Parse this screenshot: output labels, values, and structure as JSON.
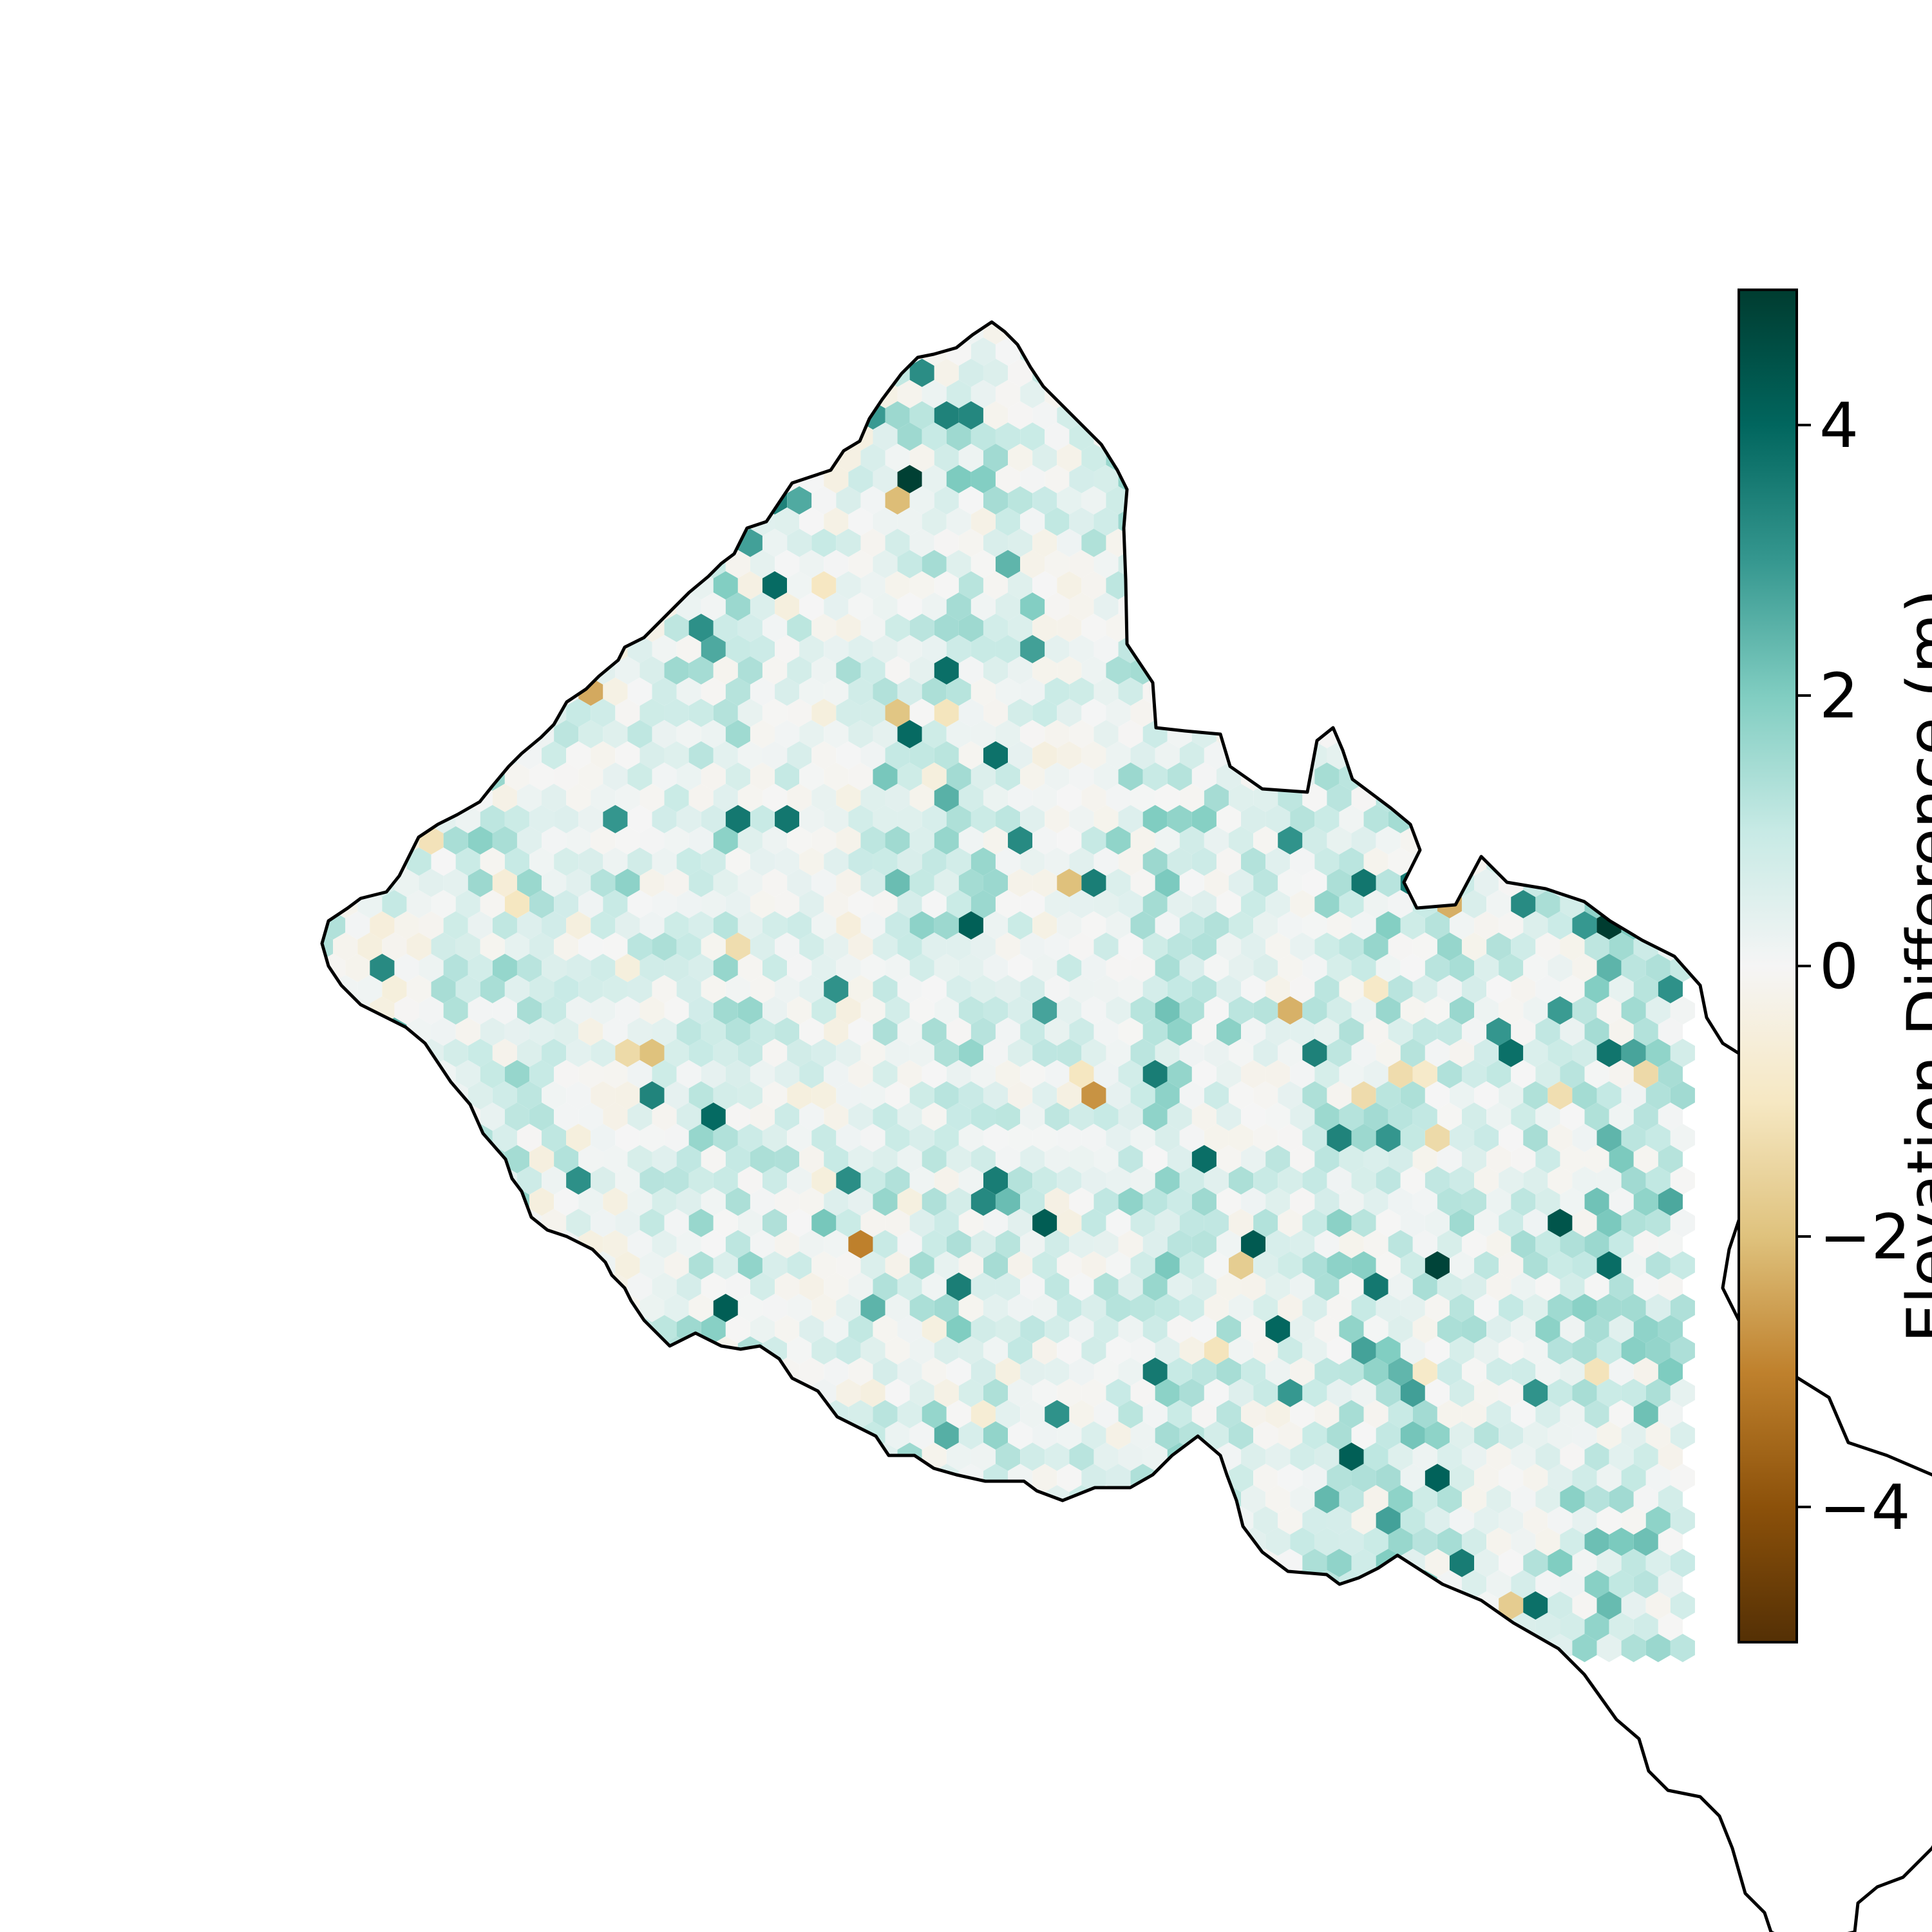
{
  "colorbar": {
    "label": "Elevation Difference (m)",
    "min": -5,
    "max": 5,
    "ticks": [
      {
        "value": 4,
        "label": "4"
      },
      {
        "value": 2,
        "label": "2"
      },
      {
        "value": 0,
        "label": "0"
      },
      {
        "value": -2,
        "label": "−2"
      },
      {
        "value": -4,
        "label": "−4"
      }
    ],
    "stops": [
      {
        "value": -5,
        "color": "#543005"
      },
      {
        "value": -4,
        "color": "#8c510a"
      },
      {
        "value": -3,
        "color": "#bf812d"
      },
      {
        "value": -2,
        "color": "#dfc27d"
      },
      {
        "value": -1,
        "color": "#f6e8c3"
      },
      {
        "value": 0,
        "color": "#f5f5f5"
      },
      {
        "value": 1,
        "color": "#c7eae5"
      },
      {
        "value": 2,
        "color": "#80cdc1"
      },
      {
        "value": 3,
        "color": "#35978f"
      },
      {
        "value": 4,
        "color": "#01665e"
      },
      {
        "value": 5,
        "color": "#003c30"
      }
    ]
  },
  "map": {
    "style": "hexbin",
    "boundary_color": "#000000"
  }
}
